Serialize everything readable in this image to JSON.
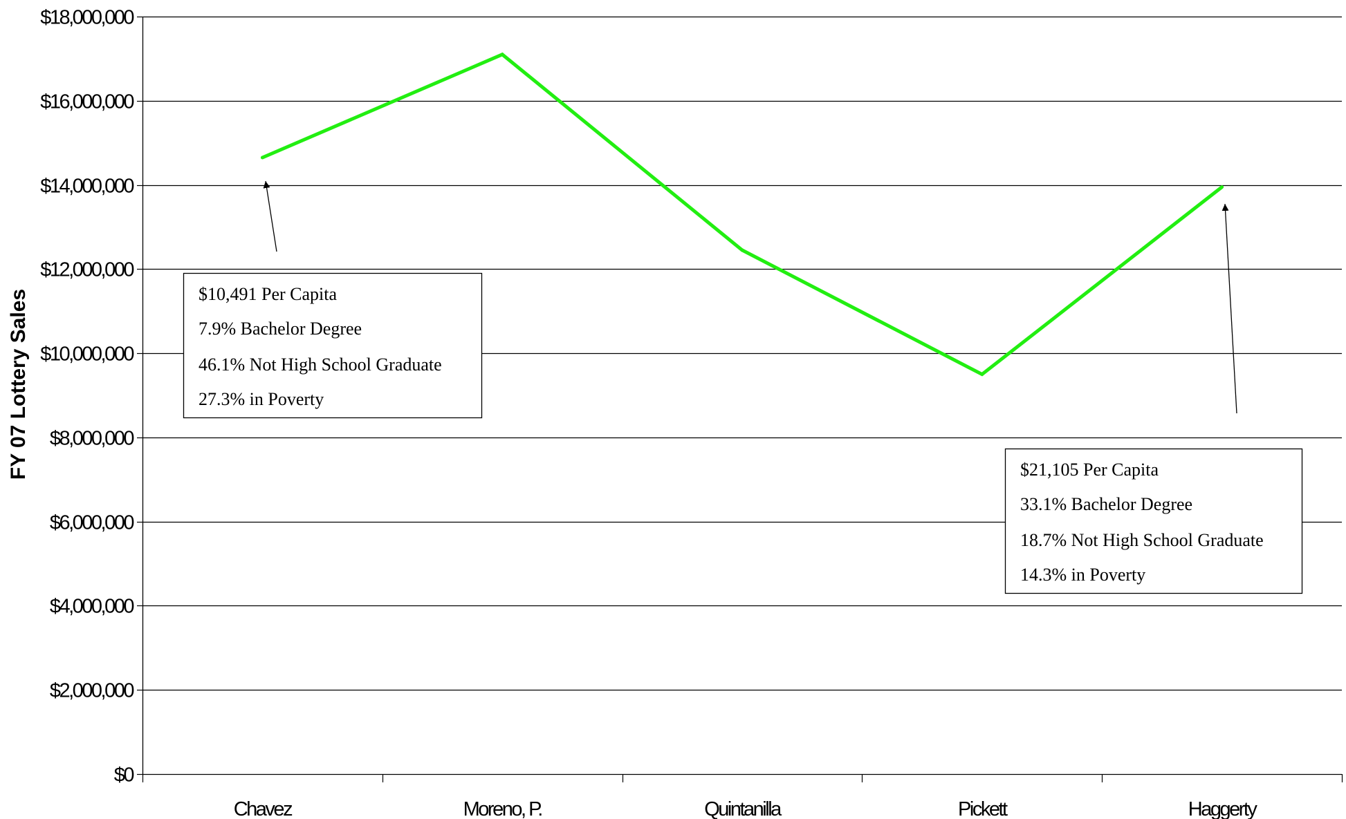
{
  "chart_data": {
    "type": "line",
    "title": "",
    "xlabel": "",
    "ylabel": "FY 07 Lottery Sales",
    "categories": [
      "Chavez",
      "Moreno, P.",
      "Quintanilla",
      "Pickett",
      "Haggerty"
    ],
    "series": [
      {
        "name": "",
        "color": "#22ee11",
        "values": [
          14650000,
          17100000,
          12450000,
          9500000,
          13950000
        ]
      }
    ],
    "ylim": [
      0,
      18000000
    ],
    "yticks": [
      0,
      2000000,
      4000000,
      6000000,
      8000000,
      10000000,
      12000000,
      14000000,
      16000000,
      18000000
    ],
    "ytick_labels": [
      "$0",
      "$2,000,000",
      "$4,000,000",
      "$6,000,000",
      "$8,000,000",
      "$10,000,000",
      "$12,000,000",
      "$14,000,000",
      "$16,000,000",
      "$18,000,000"
    ],
    "grid": true,
    "legend": "none",
    "annotations": [
      {
        "target_category": "Chavez",
        "lines": [
          "$10,491  Per Capita",
          "7.9%  Bachelor Degree",
          "46.1%  Not High School Graduate",
          "27.3%  in  Poverty"
        ]
      },
      {
        "target_category": "Haggerty",
        "lines": [
          "$21,105 Per Capita",
          "33.1%  Bachelor Degree",
          "18.7%  Not High School Graduate",
          "14.3%  in  Poverty"
        ]
      }
    ]
  }
}
